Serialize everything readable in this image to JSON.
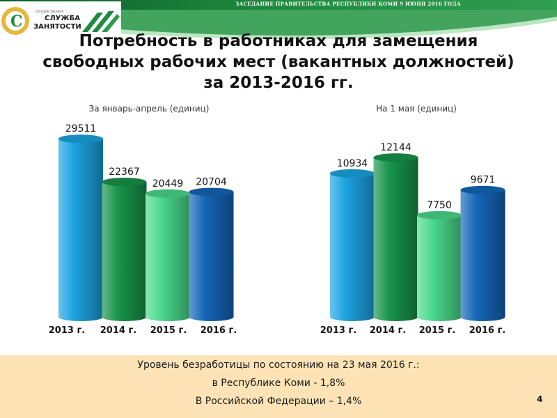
{
  "header": {
    "banner_text": "ЗАСЕДАНИЕ ПРАВИТЕЛЬСТВА РЕСПУБЛИКИ КОМИ 9 ИЮНЯ 2016 ГОДА",
    "logo_line1": "СЛУЖБА",
    "logo_line2": "ЗАНЯТОСТИ",
    "logo_small": "ГОСУДАРСТВЕННАЯ",
    "brand_color": "#1f8a3f"
  },
  "title_lines": [
    "Потребность в работниках для замещения",
    "свободных рабочих мест (вакантных должностей)",
    "за 2013-2016 гг."
  ],
  "chart_data": [
    {
      "type": "bar",
      "title": "За январь-апрель (единиц)",
      "categories": [
        "2013 г.",
        "2014 г.",
        "2015 г.",
        "2016 г."
      ],
      "values": [
        29511,
        22367,
        20449,
        20704
      ],
      "ylim": [
        0,
        30000
      ],
      "grid": false,
      "colors": [
        "#1aa3e0",
        "#17944a",
        "#4ad98c",
        "#1466b8"
      ]
    },
    {
      "type": "bar",
      "title": "На 1 мая (единиц)",
      "categories": [
        "2013 г.",
        "2014 г.",
        "2015 г.",
        "2016 г."
      ],
      "values": [
        10934,
        12144,
        7750,
        9671
      ],
      "ylim": [
        0,
        13000
      ],
      "grid": false,
      "colors": [
        "#1aa3e0",
        "#17944a",
        "#4ad98c",
        "#1466b8"
      ]
    }
  ],
  "footer": {
    "line1": "Уровень безработицы по состоянию на 23 мая 2016 г.:",
    "line2": "в Республике Коми - 1,8%",
    "line3": "В Российской Федерации – 1,4%"
  },
  "page_number": "4"
}
